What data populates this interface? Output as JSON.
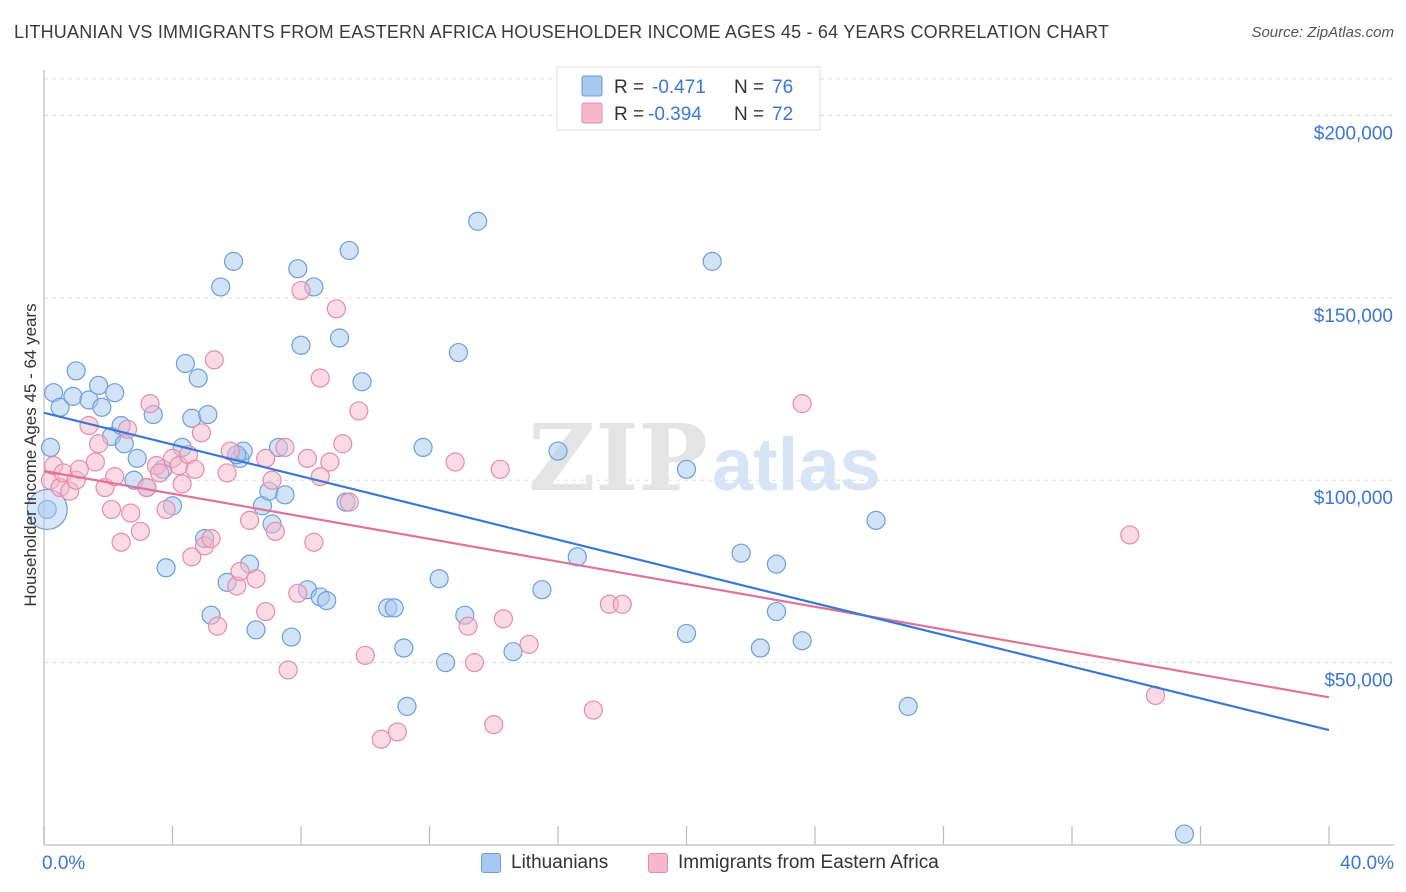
{
  "title": "LITHUANIAN VS IMMIGRANTS FROM EASTERN AFRICA HOUSEHOLDER INCOME AGES 45 - 64 YEARS CORRELATION CHART",
  "source": "Source: ZipAtlas.com",
  "watermark": {
    "zip": "ZIP",
    "atlas": "atlas"
  },
  "colors": {
    "blue_fill": "#a8c8f0",
    "blue_stroke": "#6a9fdc",
    "blue_line": "#3a78d4",
    "pink_fill": "#f5b8cc",
    "pink_stroke": "#e88aa8",
    "pink_line": "#e0739b",
    "axis_text": "#3a78d4",
    "grid": "#dddddd"
  },
  "legend": {
    "rows": [
      {
        "r_label": "R =",
        "r_value": "-0.471",
        "n_label": "N =",
        "n_value": "76",
        "series": "blue"
      },
      {
        "r_label": "R =",
        "r_value": "-0.394",
        "n_label": "N =",
        "n_value": "72",
        "series": "pink"
      }
    ]
  },
  "bottom_legend": {
    "lithuanians": "Lithuanians",
    "immigrants": "Immigrants from Eastern Africa"
  },
  "chart_data": {
    "type": "scatter",
    "title": "LITHUANIAN VS IMMIGRANTS FROM EASTERN AFRICA HOUSEHOLDER INCOME AGES 45 - 64 YEARS CORRELATION CHART",
    "xlabel": "",
    "ylabel": "Householder Income Ages 45 - 64 years",
    "x_tick_labels": [
      "0.0%",
      "40.0%"
    ],
    "y_tick_labels": [
      "$50,000",
      "$100,000",
      "$150,000",
      "$200,000"
    ],
    "y_ticks": [
      50000,
      100000,
      150000,
      200000
    ],
    "xlim": [
      0,
      40
    ],
    "ylim": [
      0,
      210000
    ],
    "grid": true,
    "legend_position": "top-center",
    "series": [
      {
        "name": "Lithuanians",
        "color": "#a8c8f0",
        "trend": {
          "x": [
            0,
            40
          ],
          "y": [
            118500,
            31500
          ]
        },
        "points": [
          [
            0.2,
            109000
          ],
          [
            0.3,
            124000
          ],
          [
            0.5,
            120000
          ],
          [
            1.0,
            130000
          ],
          [
            0.9,
            123000
          ],
          [
            1.4,
            122000
          ],
          [
            1.7,
            126000
          ],
          [
            1.8,
            120000
          ],
          [
            2.2,
            124000
          ],
          [
            2.1,
            112000
          ],
          [
            2.4,
            115000
          ],
          [
            2.5,
            110000
          ],
          [
            2.8,
            100000
          ],
          [
            2.9,
            106000
          ],
          [
            3.2,
            98000
          ],
          [
            3.4,
            118000
          ],
          [
            3.7,
            103000
          ],
          [
            3.8,
            76000
          ],
          [
            4.0,
            93000
          ],
          [
            4.3,
            109000
          ],
          [
            4.4,
            132000
          ],
          [
            4.6,
            117000
          ],
          [
            4.8,
            128000
          ],
          [
            5.0,
            84000
          ],
          [
            5.1,
            118000
          ],
          [
            5.2,
            63000
          ],
          [
            5.5,
            153000
          ],
          [
            5.7,
            72000
          ],
          [
            5.9,
            160000
          ],
          [
            6.1,
            106000
          ],
          [
            6.2,
            108000
          ],
          [
            6.4,
            77000
          ],
          [
            6.6,
            59000
          ],
          [
            6.8,
            93000
          ],
          [
            7.0,
            97000
          ],
          [
            7.1,
            88000
          ],
          [
            7.3,
            109000
          ],
          [
            7.5,
            96000
          ],
          [
            7.7,
            57000
          ],
          [
            7.9,
            158000
          ],
          [
            8.0,
            137000
          ],
          [
            8.2,
            70000
          ],
          [
            8.4,
            153000
          ],
          [
            8.6,
            68000
          ],
          [
            8.8,
            67000
          ],
          [
            9.2,
            139000
          ],
          [
            9.4,
            94000
          ],
          [
            9.5,
            163000
          ],
          [
            9.9,
            127000
          ],
          [
            10.7,
            65000
          ],
          [
            10.9,
            65000
          ],
          [
            11.2,
            54000
          ],
          [
            11.3,
            38000
          ],
          [
            11.8,
            109000
          ],
          [
            12.3,
            73000
          ],
          [
            12.5,
            50000
          ],
          [
            12.9,
            135000
          ],
          [
            13.1,
            63000
          ],
          [
            13.5,
            171000
          ],
          [
            14.6,
            53000
          ],
          [
            15.5,
            70000
          ],
          [
            16.0,
            108000
          ],
          [
            16.6,
            79000
          ],
          [
            20.0,
            58000
          ],
          [
            20.0,
            103000
          ],
          [
            20.8,
            160000
          ],
          [
            21.7,
            80000
          ],
          [
            22.3,
            54000
          ],
          [
            22.8,
            77000
          ],
          [
            22.8,
            64000
          ],
          [
            23.6,
            56000
          ],
          [
            25.9,
            89000
          ],
          [
            26.9,
            38000
          ],
          [
            35.5,
            3000
          ],
          [
            0.1,
            92000
          ],
          [
            6.0,
            107000
          ]
        ]
      },
      {
        "name": "Immigrants from Eastern Africa",
        "color": "#f5b8cc",
        "trend": {
          "x": [
            0,
            40
          ],
          "y": [
            102500,
            40500
          ]
        },
        "points": [
          [
            0.2,
            100000
          ],
          [
            0.3,
            104000
          ],
          [
            0.5,
            98000
          ],
          [
            0.6,
            102000
          ],
          [
            0.8,
            97000
          ],
          [
            1.0,
            100000
          ],
          [
            1.1,
            103000
          ],
          [
            1.4,
            115000
          ],
          [
            1.6,
            105000
          ],
          [
            1.7,
            110000
          ],
          [
            1.9,
            98000
          ],
          [
            2.1,
            92000
          ],
          [
            2.2,
            101000
          ],
          [
            2.4,
            83000
          ],
          [
            2.6,
            114000
          ],
          [
            2.7,
            91000
          ],
          [
            3.0,
            86000
          ],
          [
            3.2,
            98000
          ],
          [
            3.3,
            121000
          ],
          [
            3.5,
            104000
          ],
          [
            3.6,
            102000
          ],
          [
            3.8,
            92000
          ],
          [
            4.0,
            106000
          ],
          [
            4.2,
            104000
          ],
          [
            4.3,
            99000
          ],
          [
            4.5,
            107000
          ],
          [
            4.6,
            79000
          ],
          [
            4.9,
            113000
          ],
          [
            5.0,
            82000
          ],
          [
            5.2,
            84000
          ],
          [
            5.3,
            133000
          ],
          [
            5.4,
            60000
          ],
          [
            5.7,
            102000
          ],
          [
            5.8,
            108000
          ],
          [
            6.0,
            71000
          ],
          [
            6.1,
            75000
          ],
          [
            6.4,
            89000
          ],
          [
            6.6,
            73000
          ],
          [
            6.9,
            64000
          ],
          [
            7.1,
            100000
          ],
          [
            7.2,
            86000
          ],
          [
            7.5,
            109000
          ],
          [
            7.6,
            48000
          ],
          [
            7.9,
            69000
          ],
          [
            8.0,
            152000
          ],
          [
            8.2,
            106000
          ],
          [
            8.4,
            83000
          ],
          [
            8.6,
            128000
          ],
          [
            8.6,
            101000
          ],
          [
            9.1,
            147000
          ],
          [
            9.3,
            110000
          ],
          [
            9.5,
            94000
          ],
          [
            9.8,
            119000
          ],
          [
            10.0,
            52000
          ],
          [
            10.5,
            29000
          ],
          [
            11.0,
            31000
          ],
          [
            12.8,
            105000
          ],
          [
            13.2,
            60000
          ],
          [
            13.4,
            50000
          ],
          [
            14.0,
            33000
          ],
          [
            14.2,
            103000
          ],
          [
            14.3,
            62000
          ],
          [
            15.1,
            55000
          ],
          [
            17.1,
            37000
          ],
          [
            17.6,
            66000
          ],
          [
            18.0,
            66000
          ],
          [
            23.6,
            121000
          ],
          [
            33.8,
            85000
          ],
          [
            34.6,
            41000
          ],
          [
            8.9,
            105000
          ],
          [
            6.9,
            106000
          ],
          [
            4.7,
            103000
          ]
        ]
      }
    ]
  }
}
